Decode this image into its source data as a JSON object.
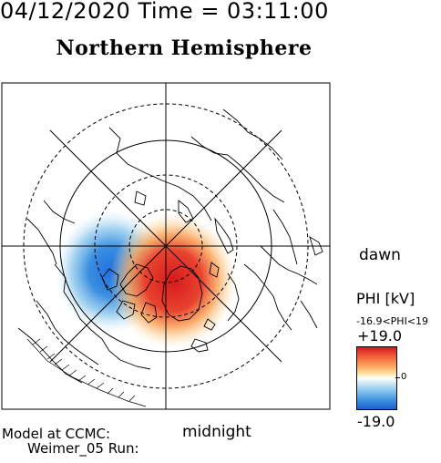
{
  "header": {
    "text": "04/12/2020 Time = 03:11:00"
  },
  "title": "Northern Hemisphere",
  "labels": {
    "dawn": "dawn",
    "midnight": "midnight"
  },
  "colorbar": {
    "label": "PHI [kV]",
    "range_text": "-16.9<PHI<19",
    "max_label": "+19.0",
    "min_label": "-19.0",
    "zero_label": "0",
    "colors": [
      "#d7191c",
      "#fdae61",
      "#ffffff",
      "#7ec0ec",
      "#1f5fd0"
    ]
  },
  "model": {
    "line1": "Model at CCMC:",
    "line2": "Weimer_05 Run:"
  }
}
